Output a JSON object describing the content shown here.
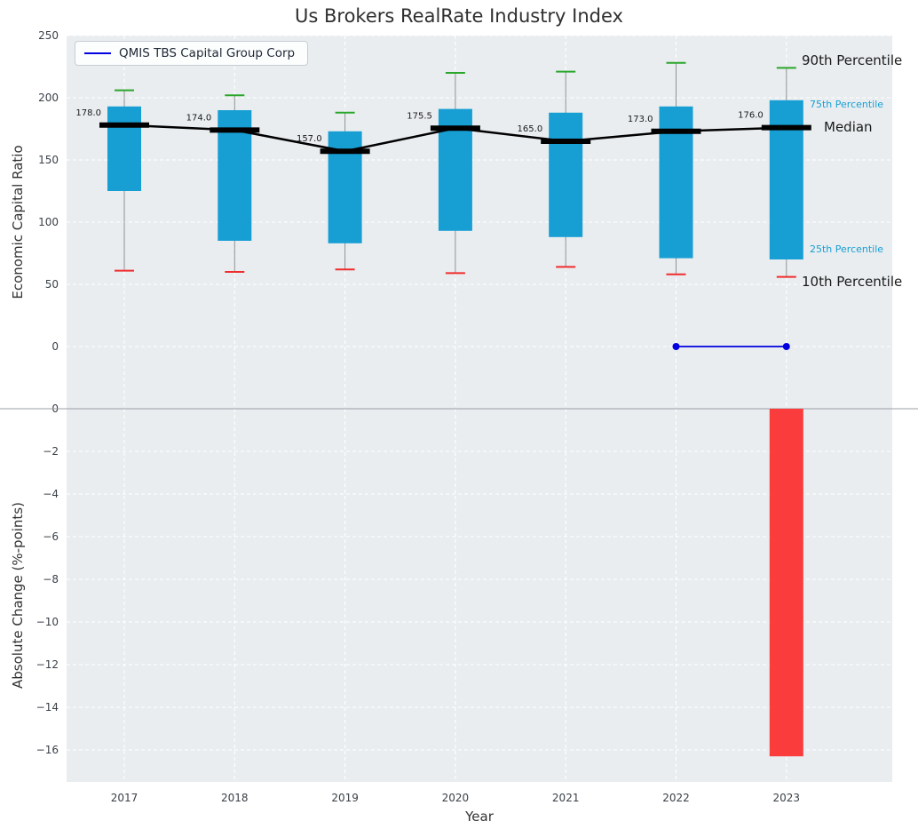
{
  "title": "Us Brokers RealRate Industry Index",
  "legend": {
    "label": "QMIS TBS Capital Group Corp"
  },
  "annotations": {
    "p90": "90th Percentile",
    "p75": "75th Percentile",
    "median": "Median",
    "p25": "25th Percentile",
    "p10": "10th Percentile"
  },
  "colors": {
    "box": "#179fd4",
    "cap_high": "#2aa62a",
    "cap_low": "#ef2d2d",
    "whisker": "#909090",
    "median": "#000000",
    "company_line": "#0000e0",
    "change_bar": "#fa3c3c",
    "panel_bg": "#e9edf0",
    "grid": "#ffffff",
    "divider": "#9aa0a6"
  },
  "chart_data": [
    {
      "type": "boxplot",
      "title": "Us Brokers RealRate Industry Index",
      "xlabel": "Year",
      "ylabel": "Economic Capital Ratio",
      "categories": [
        2017,
        2018,
        2019,
        2020,
        2021,
        2022,
        2023
      ],
      "ylim": [
        -50,
        250
      ],
      "yticks": [
        250,
        200,
        150,
        100,
        50,
        0
      ],
      "grid": true,
      "legend_position": "upper left",
      "series": [
        {
          "name": "90th percentile",
          "values": [
            206,
            202,
            188,
            220,
            221,
            228,
            224
          ]
        },
        {
          "name": "75th percentile",
          "values": [
            193,
            190,
            173,
            191,
            188,
            193,
            198
          ]
        },
        {
          "name": "median",
          "values": [
            178.0,
            174.0,
            157.0,
            175.5,
            165.0,
            173.0,
            176.0
          ]
        },
        {
          "name": "25th percentile",
          "values": [
            125,
            85,
            83,
            93,
            88,
            71,
            70
          ]
        },
        {
          "name": "10th percentile",
          "values": [
            61,
            60,
            62,
            59,
            64,
            58,
            56
          ]
        }
      ],
      "median_labels": [
        "178.0",
        "174.0",
        "157.0",
        "175.5",
        "165.0",
        "173.0",
        "176.0"
      ],
      "company_series": {
        "name": "QMIS TBS Capital Group Corp",
        "x": [
          2022,
          2023
        ],
        "values": [
          0,
          0
        ]
      }
    },
    {
      "type": "bar",
      "xlabel": "Year",
      "ylabel": "Absolute Change (%-points)",
      "categories": [
        2017,
        2018,
        2019,
        2020,
        2021,
        2022,
        2023
      ],
      "values": [
        null,
        null,
        null,
        null,
        null,
        null,
        -16.3
      ],
      "ylim": [
        -17.5,
        0
      ],
      "yticks": [
        0,
        -2,
        -4,
        -6,
        -8,
        -10,
        -12,
        -14,
        -16
      ]
    }
  ]
}
